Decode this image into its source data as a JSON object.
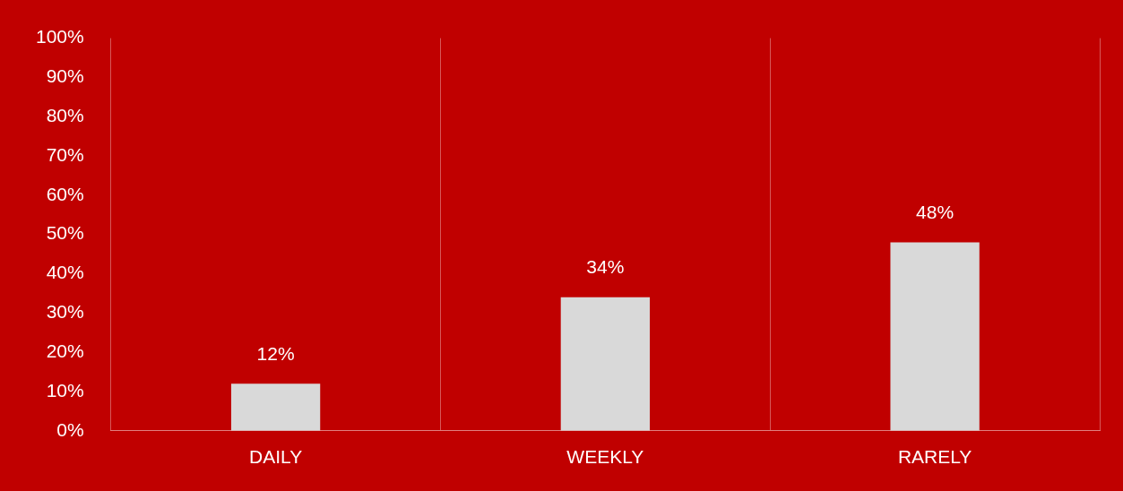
{
  "chart_data": {
    "type": "bar",
    "categories": [
      "DAILY",
      "WEEKLY",
      "RARELY"
    ],
    "values": [
      12,
      34,
      48
    ],
    "color": "#d9d9d9",
    "ylim": [
      0,
      100
    ],
    "yticks": [
      {
        "value": 0,
        "label": "0%"
      },
      {
        "value": 10,
        "label": "10%"
      },
      {
        "value": 20,
        "label": "20%"
      },
      {
        "value": 30,
        "label": "30%"
      },
      {
        "value": 40,
        "label": "40%"
      },
      {
        "value": 50,
        "label": "50%"
      },
      {
        "value": 60,
        "label": "60%"
      },
      {
        "value": 70,
        "label": "70%"
      },
      {
        "value": 80,
        "label": "80%"
      },
      {
        "value": 90,
        "label": "90%"
      },
      {
        "value": 100,
        "label": "100%"
      }
    ],
    "value_labels": [
      "12%",
      "34%",
      "48%"
    ],
    "grid": "x",
    "legend": false
  }
}
